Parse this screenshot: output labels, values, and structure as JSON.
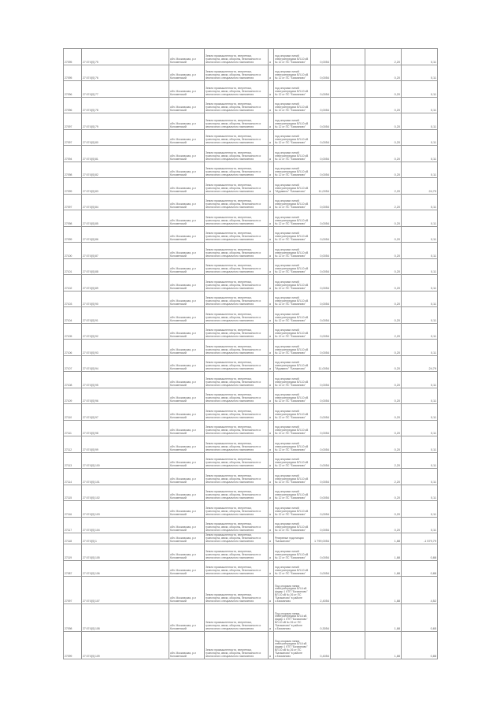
{
  "defaults": {
    "address": "обл. Московская, р-н Коломенский",
    "category": "Земли промышленности, энергетики, транспорта, связи, обороны, безопасности и земли иного специального назначения",
    "marker": "а",
    "use": "под опорами линий электропередачи ВЛ-10 кВ № 12 от ПС \"Бачманово\""
  },
  "rows": [
    {
      "id": "27095",
      "cad": "27:07:0[0]:75",
      "use": "",
      "area": "0,0054",
      "rate": "2,20",
      "sum": "0,11"
    },
    {
      "id": "27095",
      "cad": "27:07:0[0]:76",
      "use": "",
      "area": "0,0054",
      "rate": "0,20",
      "sum": "0,11"
    },
    {
      "id": "27096",
      "cad": "27:07:0[0]:77",
      "use": "",
      "area": "0,0054",
      "rate": "0,20",
      "sum": "0,11"
    },
    {
      "id": "27096",
      "cad": "27:07:0[0]:78",
      "use": "",
      "area": "0,0054",
      "rate": "0,20",
      "sum": "0,11"
    },
    {
      "id": "27097",
      "cad": "27:07:0[0]:79",
      "use": "",
      "area": "0,0054",
      "rate": "0,20",
      "sum": "0,11"
    },
    {
      "id": "27097",
      "cad": "27:07:0[0]:80",
      "use": "",
      "area": "0,0054",
      "rate": "0,20",
      "sum": "0,11"
    },
    {
      "id": "27094",
      "cad": "27:07:0[0]:81",
      "use": "",
      "area": "0,0054",
      "rate": "0,20",
      "sum": "0,11"
    },
    {
      "id": "27098",
      "cad": "27:07:0[0]:82",
      "use": "",
      "area": "0,0054",
      "rate": "0,20",
      "sum": "0,11"
    },
    {
      "id": "27099",
      "cad": "27:07:0[0]:83",
      "use": "под опорами линий электропередачи ВЛ-10 кВ \"Муравино\" \"Бачманово\"",
      "area": "11,0054",
      "rate": "2,20",
      "sum": "24,79"
    },
    {
      "id": "27097",
      "cad": "27:07:0[0]:84",
      "use": "",
      "area": "0,0054",
      "rate": "2,20",
      "sum": "0,11"
    },
    {
      "id": "27098",
      "cad": "27:07:0[0]:85",
      "use": "",
      "area": "0,0054",
      "rate": "0,20",
      "sum": "0,11"
    },
    {
      "id": "27099",
      "cad": "27:07:0[0]:86",
      "use": "",
      "area": "0,0054",
      "rate": "0,20",
      "sum": "0,11"
    },
    {
      "id": "27100",
      "cad": "27:07:0[0]:87",
      "use": "",
      "area": "0,0054",
      "rate": "0,20",
      "sum": "0,11"
    },
    {
      "id": "27101",
      "cad": "27:07:0[0]:88",
      "use": "",
      "area": "0,0054",
      "rate": "0,20",
      "sum": "0,11"
    },
    {
      "id": "27102",
      "cad": "27:07:0[0]:89",
      "use": "",
      "area": "0,0054",
      "rate": "0,20",
      "sum": "0,11"
    },
    {
      "id": "27103",
      "cad": "27:07:0[0]:90",
      "use": "",
      "area": "0,0054",
      "rate": "0,20",
      "sum": "0,11"
    },
    {
      "id": "27104",
      "cad": "27:07:0[0]:91",
      "use": "",
      "area": "0,0054",
      "rate": "0,20",
      "sum": "0,11"
    },
    {
      "id": "27105",
      "cad": "27:07:0[0]:92",
      "use": "",
      "area": "0,0054",
      "rate": "2,20",
      "sum": "0,11"
    },
    {
      "id": "27106",
      "cad": "27:07:0[0]:93",
      "use": "",
      "area": "0,0054",
      "rate": "0,20",
      "sum": "0,11"
    },
    {
      "id": "27107",
      "cad": "27:07:0[0]:94",
      "use": "под опорами линий электропередачи ВЛ-10 кВ \"Муравино\" \"Бачманово\"",
      "area": "11,0054",
      "rate": "0,20",
      "sum": "24,79"
    },
    {
      "id": "27108",
      "cad": "27:07:0[0]:95",
      "use": "",
      "area": "0,0054",
      "rate": "0,20",
      "sum": "0,11"
    },
    {
      "id": "27109",
      "cad": "27:07:0[0]:96",
      "use": "",
      "area": "0,0054",
      "rate": "0,20",
      "sum": "0,11"
    },
    {
      "id": "27110",
      "cad": "27:07:0[0]:97",
      "use": "",
      "area": "0,0054",
      "rate": "0,20",
      "sum": "0,11"
    },
    {
      "id": "27111",
      "cad": "27:07:0[0]:98",
      "use": "",
      "area": "0,0054",
      "rate": "0,20",
      "sum": "0,11"
    },
    {
      "id": "27112",
      "cad": "27:07:0[0]:99",
      "use": "",
      "area": "0,0054",
      "rate": "0,20",
      "sum": "0,11"
    },
    {
      "id": "27113",
      "cad": "27:07:0[0]:100",
      "use": "",
      "area": "0,0054",
      "rate": "2,20",
      "sum": "0,11"
    },
    {
      "id": "27114",
      "cad": "27:07:0[0]:101",
      "use": "",
      "area": "0,0054",
      "rate": "2,20",
      "sum": "0,11"
    },
    {
      "id": "27115",
      "cad": "27:07:0[0]:102",
      "use": "",
      "area": "0,0054",
      "rate": "0,20",
      "sum": "0,11"
    },
    {
      "id": "27116",
      "cad": "27:07:0[0]:103",
      "use": "",
      "area": "0,0054",
      "rate": "0,20",
      "sum": "0,11"
    },
    {
      "id": "27117",
      "cad": "27:07:0[0]:104",
      "use": "",
      "area": "0,0054",
      "rate": "0,20",
      "sum": "0,11"
    },
    {
      "id": "27118",
      "cad": "27:07:0[0]:1",
      "use": "Резервные подстанции \"Бачманово\"",
      "area": "1 799,0054",
      "rate": "1,88",
      "sum": "-1 579,79",
      "short": true
    },
    {
      "id": "27119",
      "cad": "27:07:0[0]:105",
      "use": "",
      "area": "0,0054",
      "rate": "1,88",
      "sum": "0,88"
    },
    {
      "id": "27087",
      "cad": "27:07:0[0]:106",
      "use": "",
      "area": "0,0054",
      "rate": "1,88",
      "sum": "0,88"
    },
    {
      "id": "27097",
      "cad": "27:07:0[0]:107",
      "use": "Под опорами линии электропередачи ВЛ-6 кВ фидер 1 КТП \"Бачманово\" ВЛ-10 кВ № 26 от ПС \"Бачманово\" в районе с.Бачманово",
      "area": "2,4054",
      "rate": "1,88",
      "sum": "4,52",
      "tall": true
    },
    {
      "id": "27098",
      "cad": "27:07:0[0]:108",
      "use": "Под опорами линии электропередачи ВЛ-6 кВ фидер 1 КТП \"Бачманово\" ВЛ-10 кВ № 26 от ПС \"Бачманово\" в районе с.Бачманово",
      "area": "0,3054",
      "rate": "1,88",
      "sum": "0,65",
      "tall": true
    },
    {
      "id": "27099",
      "cad": "27:07:0[0]:109",
      "use": "Под опорами линии электропередачи ВЛ-6 кВ фидер 1 КТП \"Бачманово\" ВЛ-10 кВ № 26 от ПС \"Бачманово\" в районе с.Бачманово",
      "area": "0,4054",
      "rate": "1,88",
      "sum": "0,88",
      "tall": true
    }
  ]
}
